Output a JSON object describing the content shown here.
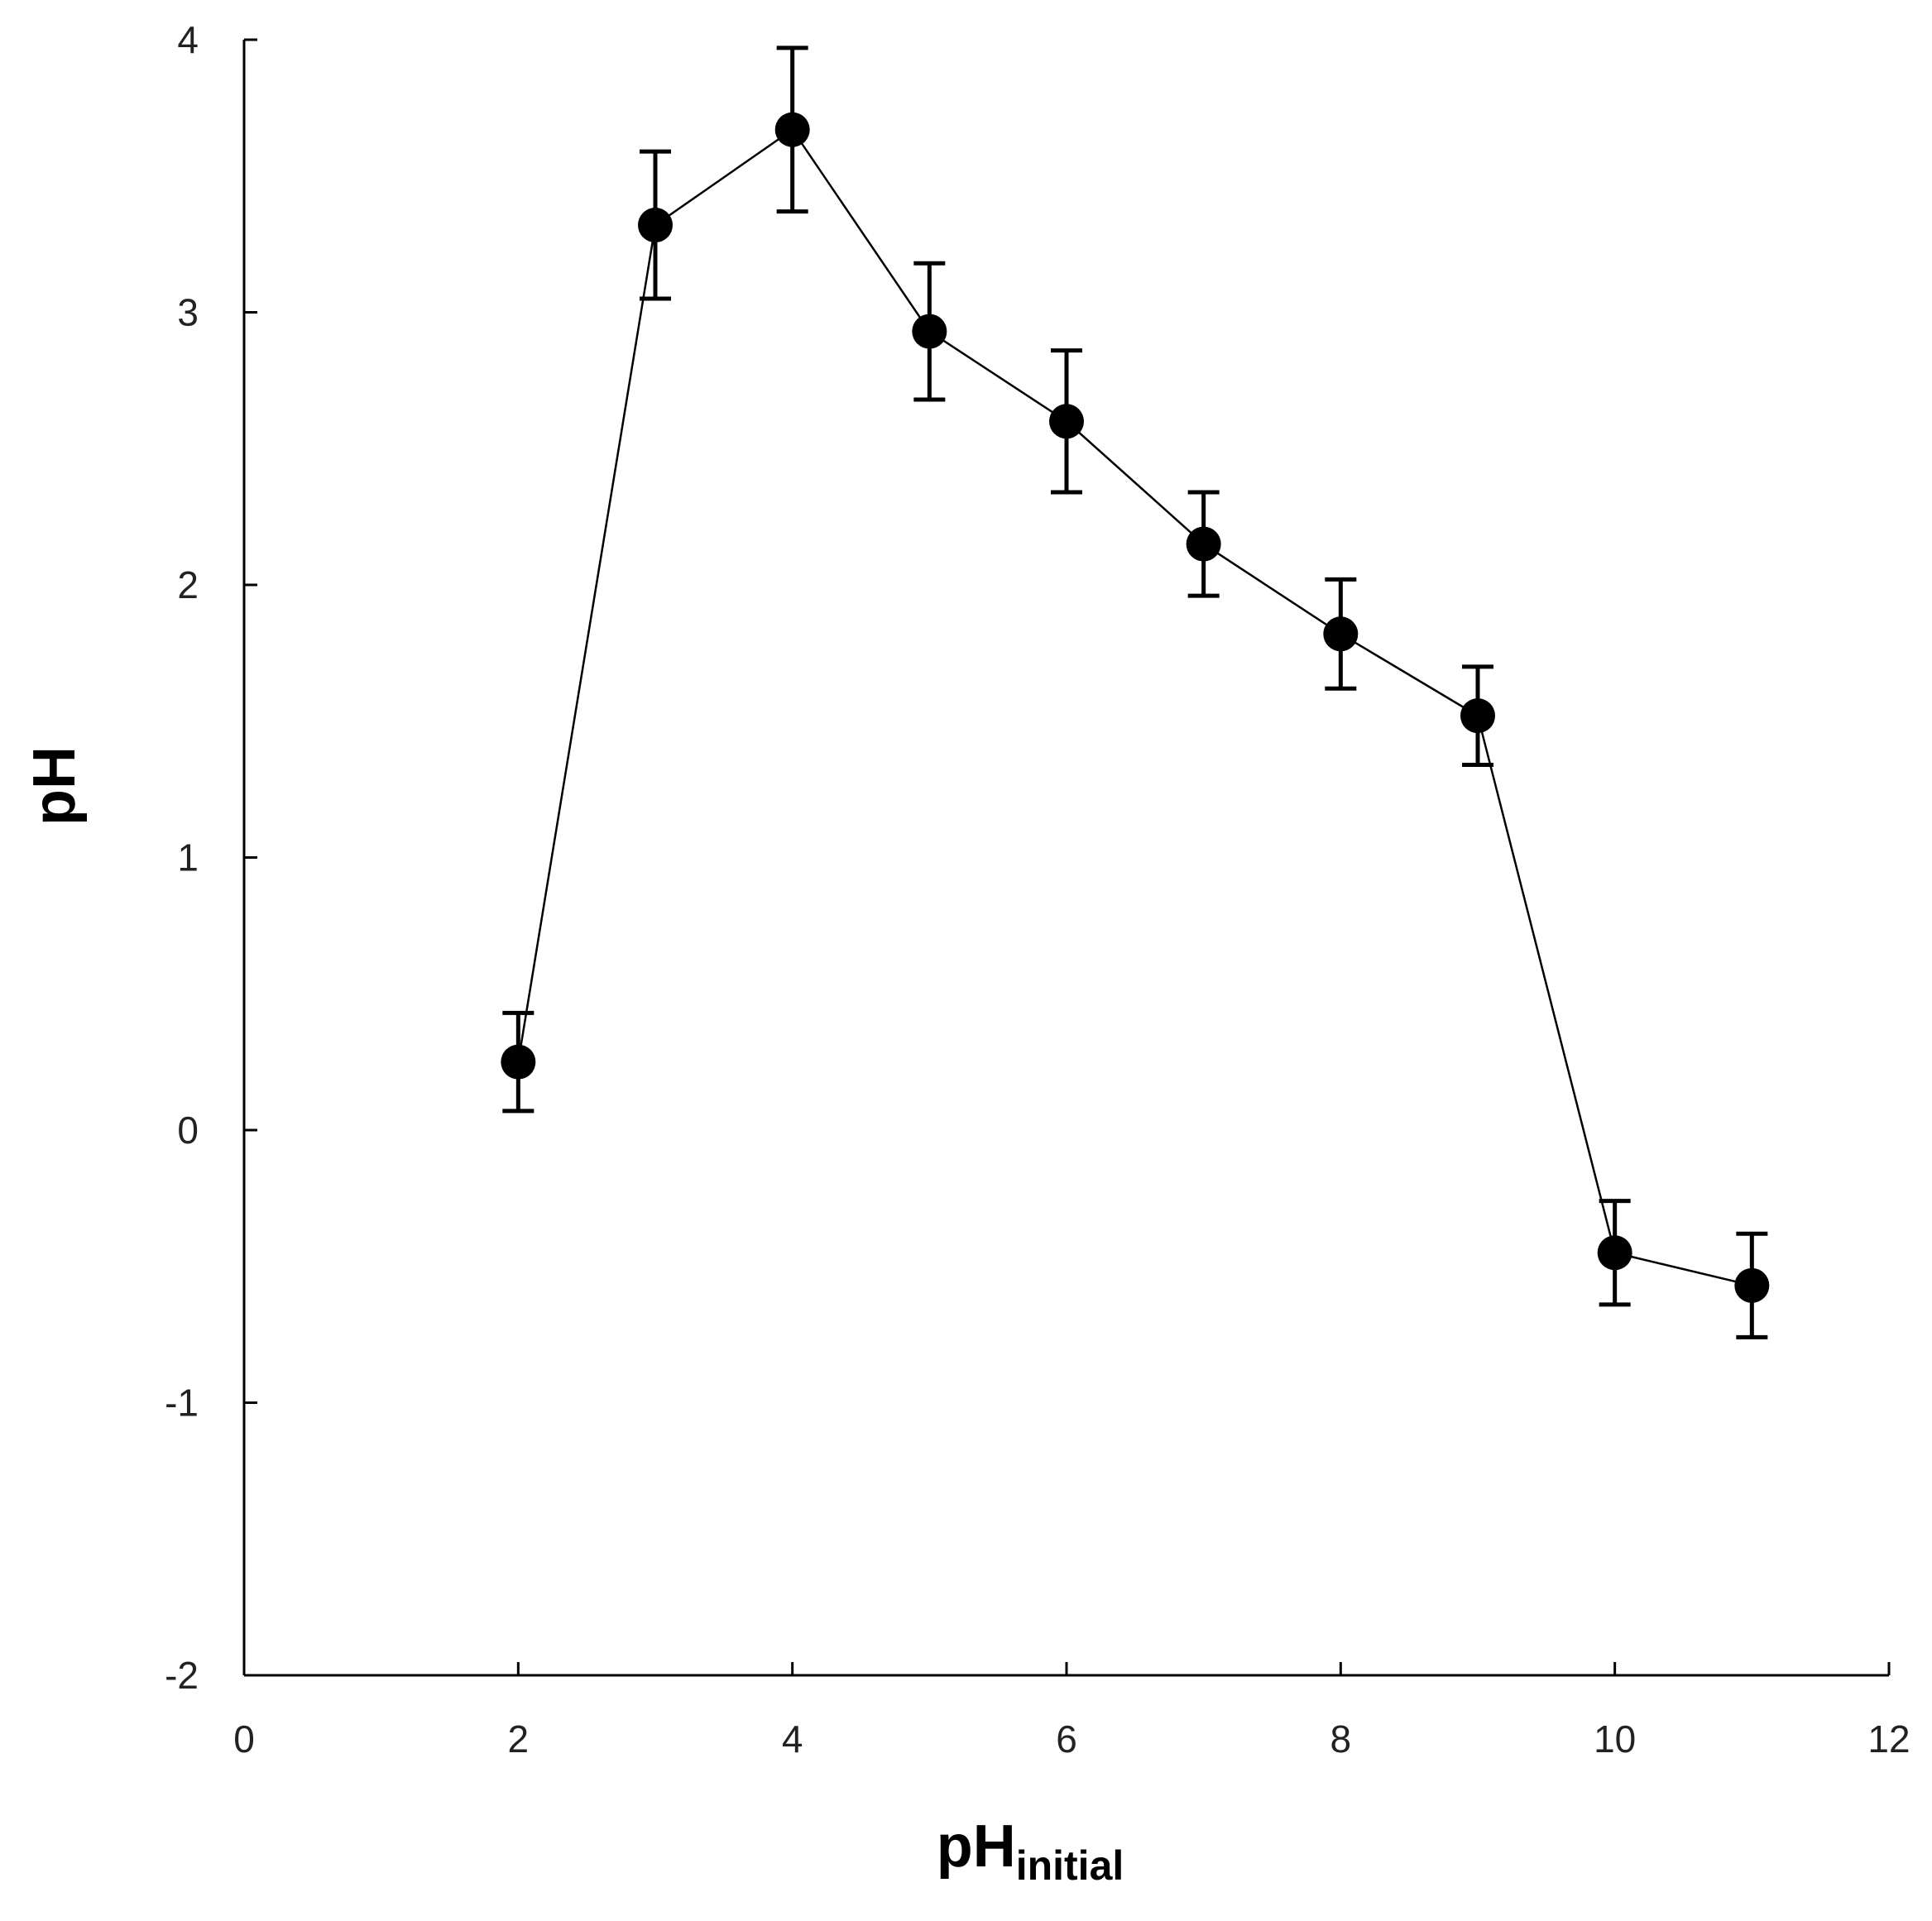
{
  "chart_data": {
    "type": "line",
    "xlabel": "pH",
    "xlabel_subscript": "initial",
    "ylabel": "pH",
    "xlim": [
      0,
      12
    ],
    "ylim": [
      -2,
      4
    ],
    "x_ticks": [
      0,
      2,
      4,
      6,
      8,
      10,
      12
    ],
    "y_ticks": [
      -2,
      -1,
      0,
      1,
      2,
      3,
      4
    ],
    "grid": false,
    "legend": "none",
    "series": [
      {
        "x": [
          2,
          3,
          4,
          5,
          6,
          7,
          8,
          9,
          10,
          11
        ],
        "values": [
          0.25,
          3.32,
          3.67,
          2.93,
          2.6,
          2.15,
          1.82,
          1.52,
          -0.45,
          -0.57
        ],
        "error": [
          0.18,
          0.27,
          0.3,
          0.25,
          0.26,
          0.19,
          0.2,
          0.18,
          0.19,
          0.19
        ],
        "marker": "circle",
        "color": "#000000"
      }
    ]
  }
}
